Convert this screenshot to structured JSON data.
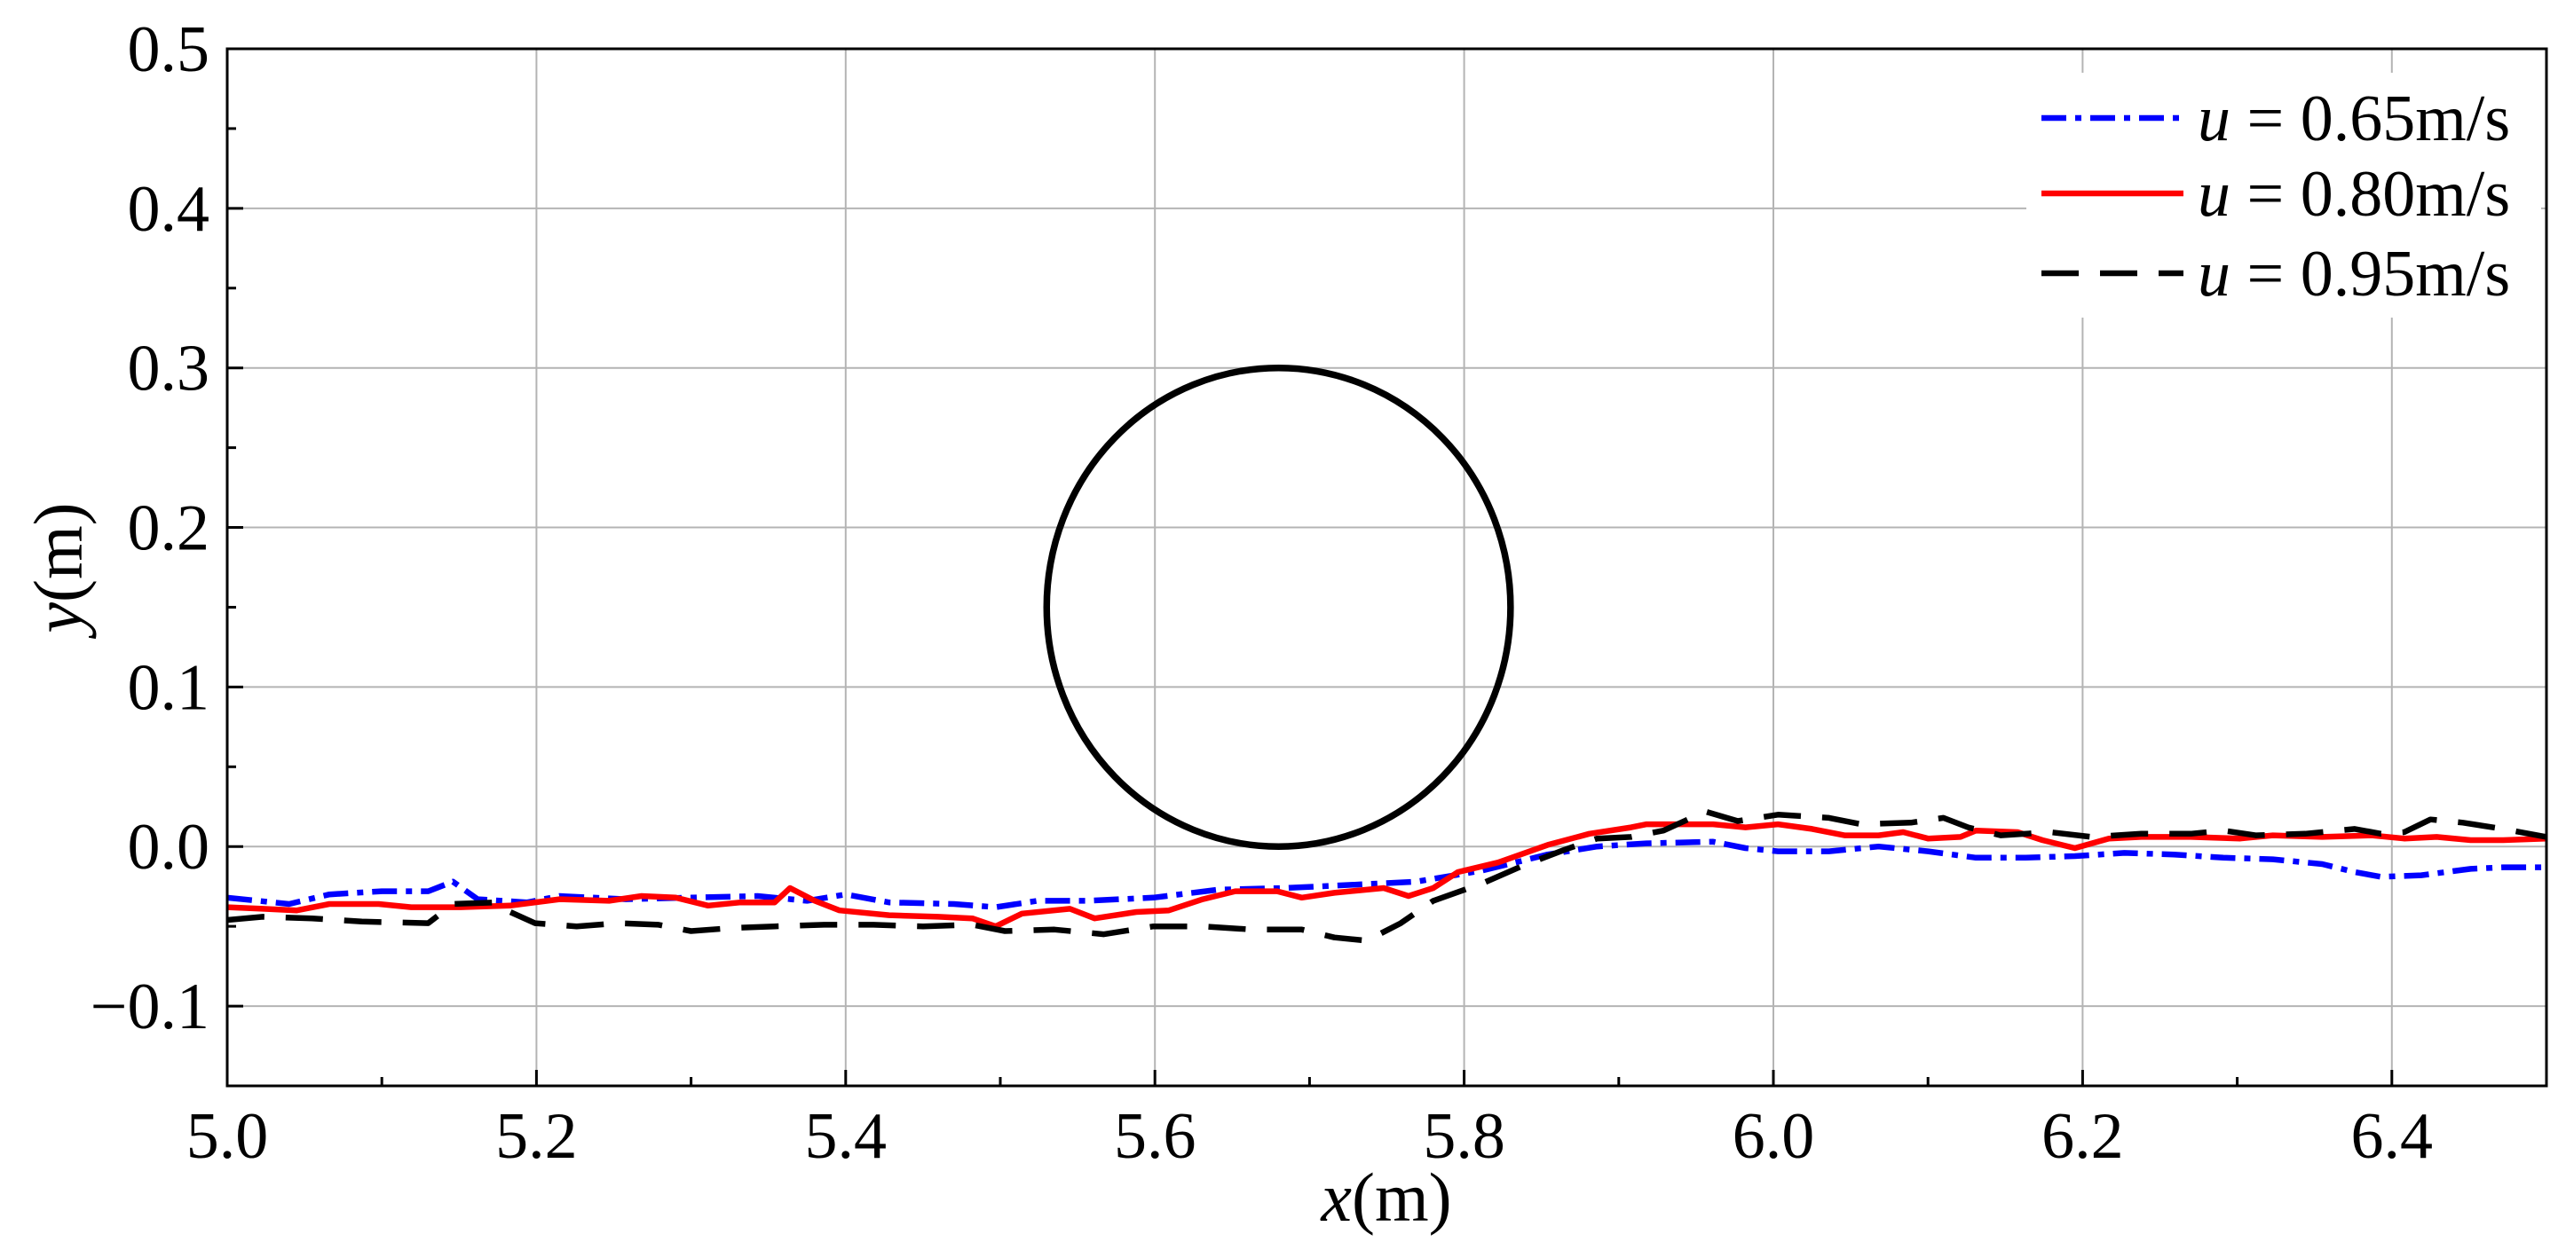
{
  "chart_data": {
    "type": "line",
    "title": "",
    "xlabel": "x(m)",
    "ylabel": "y(m)",
    "xlim": [
      5.0,
      6.5
    ],
    "ylim": [
      -0.15,
      0.5
    ],
    "xticks": [
      5.0,
      5.2,
      5.4,
      5.6,
      5.8,
      6.0,
      6.2,
      6.4
    ],
    "xtick_labels": [
      "5.0",
      "5.2",
      "5.4",
      "5.6",
      "5.8",
      "6.0",
      "6.2",
      "6.4"
    ],
    "yticks": [
      0.5,
      0.4,
      0.3,
      0.2,
      0.1,
      0.0,
      -0.1
    ],
    "ytick_labels": [
      "0.5",
      "0.4",
      "0.3",
      "0.2",
      "0.1",
      "0.0",
      "−0.1"
    ],
    "minor_xticks": [
      5.1,
      5.3,
      5.5,
      5.7,
      5.9,
      6.1,
      6.3
    ],
    "minor_yticks": [
      0.45,
      0.35,
      0.25,
      0.15,
      0.05,
      -0.05
    ],
    "grid": true,
    "legend_position": "top-right",
    "circle": {
      "cx": 5.68,
      "cy": 0.15,
      "r": 0.15,
      "color": "#000000"
    },
    "series": [
      {
        "name": "u = 0.65m/s",
        "color": "#0000ff",
        "linestyle": "dash-dot",
        "x": [
          5.0,
          5.04,
          5.066,
          5.1,
          5.13,
          5.146,
          5.162,
          5.194,
          5.215,
          5.258,
          5.3,
          5.343,
          5.375,
          5.4,
          5.428,
          5.47,
          5.497,
          5.524,
          5.556,
          5.599,
          5.641,
          5.684,
          5.727,
          5.769,
          5.812,
          5.854,
          5.886,
          5.918,
          5.961,
          5.982,
          6.003,
          6.036,
          6.068,
          6.1,
          6.131,
          6.163,
          6.195,
          6.227,
          6.259,
          6.291,
          6.323,
          6.355,
          6.376,
          6.393,
          6.419,
          6.451,
          6.472,
          6.5
        ],
        "y": [
          -0.032,
          -0.036,
          -0.03,
          -0.028,
          -0.028,
          -0.022,
          -0.033,
          -0.035,
          -0.031,
          -0.033,
          -0.032,
          -0.031,
          -0.034,
          -0.03,
          -0.035,
          -0.036,
          -0.038,
          -0.034,
          -0.034,
          -0.032,
          -0.027,
          -0.026,
          -0.024,
          -0.022,
          -0.015,
          -0.005,
          0.0,
          0.002,
          0.003,
          -0.001,
          -0.003,
          -0.003,
          0.0,
          -0.003,
          -0.007,
          -0.007,
          -0.006,
          -0.004,
          -0.005,
          -0.007,
          -0.008,
          -0.011,
          -0.016,
          -0.019,
          -0.018,
          -0.014,
          -0.013,
          -0.013
        ]
      },
      {
        "name": "u = 0.80m/s",
        "color": "#ff0000",
        "linestyle": "solid",
        "x": [
          5.0,
          5.023,
          5.045,
          5.066,
          5.098,
          5.119,
          5.151,
          5.183,
          5.215,
          5.247,
          5.268,
          5.29,
          5.311,
          5.332,
          5.354,
          5.364,
          5.38,
          5.396,
          5.428,
          5.46,
          5.482,
          5.497,
          5.514,
          5.545,
          5.561,
          5.588,
          5.609,
          5.631,
          5.652,
          5.679,
          5.695,
          5.716,
          5.748,
          5.764,
          5.78,
          5.796,
          5.822,
          5.854,
          5.881,
          5.908,
          5.918,
          5.961,
          5.982,
          6.003,
          6.025,
          6.046,
          6.068,
          6.084,
          6.1,
          6.121,
          6.131,
          6.158,
          6.174,
          6.195,
          6.217,
          6.238,
          6.27,
          6.302,
          6.323,
          6.355,
          6.387,
          6.408,
          6.429,
          6.451,
          6.472,
          6.5
        ],
        "y": [
          -0.038,
          -0.039,
          -0.04,
          -0.036,
          -0.036,
          -0.038,
          -0.038,
          -0.037,
          -0.033,
          -0.034,
          -0.031,
          -0.032,
          -0.037,
          -0.035,
          -0.035,
          -0.026,
          -0.034,
          -0.04,
          -0.043,
          -0.044,
          -0.045,
          -0.05,
          -0.042,
          -0.039,
          -0.045,
          -0.041,
          -0.04,
          -0.033,
          -0.028,
          -0.028,
          -0.032,
          -0.029,
          -0.026,
          -0.031,
          -0.026,
          -0.016,
          -0.01,
          0.001,
          0.008,
          0.012,
          0.014,
          0.014,
          0.012,
          0.014,
          0.011,
          0.007,
          0.007,
          0.009,
          0.005,
          0.006,
          0.01,
          0.009,
          0.004,
          -0.001,
          0.005,
          0.006,
          0.006,
          0.005,
          0.007,
          0.006,
          0.007,
          0.005,
          0.006,
          0.004,
          0.004,
          0.005
        ]
      },
      {
        "name": "u = 0.95m/s",
        "color": "#000000",
        "linestyle": "dashed",
        "x": [
          5.0,
          5.023,
          5.055,
          5.087,
          5.13,
          5.146,
          5.173,
          5.183,
          5.199,
          5.226,
          5.253,
          5.279,
          5.3,
          5.327,
          5.354,
          5.386,
          5.418,
          5.45,
          5.482,
          5.503,
          5.535,
          5.567,
          5.599,
          5.631,
          5.663,
          5.695,
          5.716,
          5.737,
          5.759,
          5.78,
          5.812,
          5.838,
          5.865,
          5.886,
          5.908,
          5.929,
          5.956,
          5.977,
          6.003,
          6.036,
          6.057,
          6.089,
          6.11,
          6.126,
          6.147,
          6.179,
          6.206,
          6.238,
          6.27,
          6.291,
          6.312,
          6.344,
          6.376,
          6.393,
          6.408,
          6.425,
          6.446,
          6.472,
          6.5
        ],
        "y": [
          -0.046,
          -0.044,
          -0.045,
          -0.047,
          -0.048,
          -0.036,
          -0.035,
          -0.041,
          -0.048,
          -0.05,
          -0.048,
          -0.049,
          -0.053,
          -0.051,
          -0.05,
          -0.049,
          -0.049,
          -0.05,
          -0.049,
          -0.053,
          -0.052,
          -0.055,
          -0.05,
          -0.05,
          -0.052,
          -0.052,
          -0.057,
          -0.059,
          -0.048,
          -0.034,
          -0.023,
          -0.012,
          -0.002,
          0.005,
          0.006,
          0.01,
          0.022,
          0.016,
          0.02,
          0.018,
          0.014,
          0.015,
          0.018,
          0.012,
          0.007,
          0.009,
          0.006,
          0.008,
          0.008,
          0.01,
          0.007,
          0.008,
          0.011,
          0.008,
          0.009,
          0.017,
          0.015,
          0.011,
          0.006
        ]
      }
    ]
  }
}
